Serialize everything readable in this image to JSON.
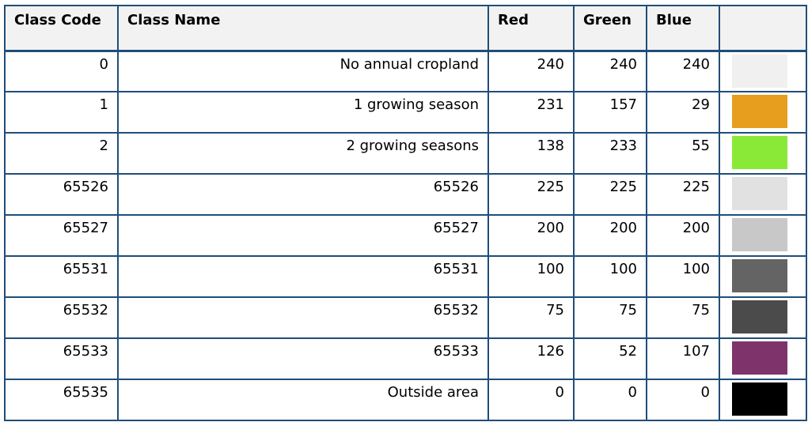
{
  "table": {
    "headers": {
      "class_code": "Class Code",
      "class_name": "Class Name",
      "red": "Red",
      "green": "Green",
      "blue": "Blue",
      "swatch": ""
    },
    "rows": [
      {
        "code": "0",
        "name": "No annual cropland",
        "red": "240",
        "green": "240",
        "blue": "240",
        "color": "#f0f0f0"
      },
      {
        "code": "1",
        "name": "1 growing season",
        "red": "231",
        "green": "157",
        "blue": "29",
        "color": "#e79d1d"
      },
      {
        "code": "2",
        "name": "2 growing seasons",
        "red": "138",
        "green": "233",
        "blue": "55",
        "color": "#8ae937"
      },
      {
        "code": "65526",
        "name": "65526",
        "red": "225",
        "green": "225",
        "blue": "225",
        "color": "#e1e1e1"
      },
      {
        "code": "65527",
        "name": "65527",
        "red": "200",
        "green": "200",
        "blue": "200",
        "color": "#c8c8c8"
      },
      {
        "code": "65531",
        "name": "65531",
        "red": "100",
        "green": "100",
        "blue": "100",
        "color": "#646464"
      },
      {
        "code": "65532",
        "name": "65532",
        "red": "75",
        "green": "75",
        "blue": "75",
        "color": "#4b4b4b"
      },
      {
        "code": "65533",
        "name": "65533",
        "red": "126",
        "green": "52",
        "blue": "107",
        "color": "#7e346b"
      },
      {
        "code": "65535",
        "name": "Outside area",
        "red": "0",
        "green": "0",
        "blue": "0",
        "color": "#000000"
      }
    ]
  }
}
